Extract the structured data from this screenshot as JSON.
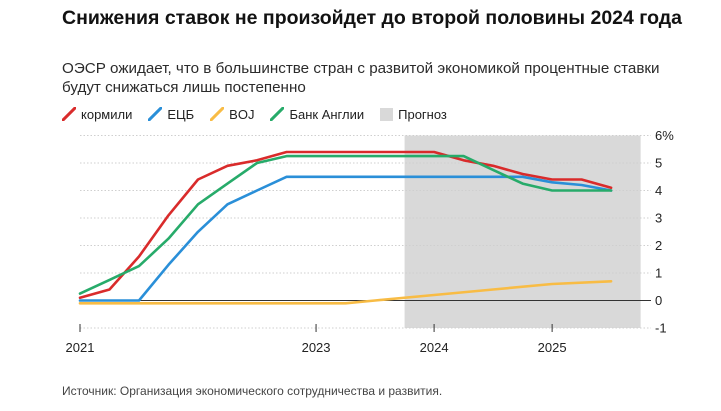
{
  "header": {
    "title": "Снижения ставок не произойдет до второй половины 2024 года",
    "subtitle": "ОЭСР ожидает, что в большинстве стран с развитой экономикой процентные ставки будут снижаться лишь постепенно"
  },
  "legend": {
    "items": [
      {
        "label": "кормили",
        "color": "#d92b2b"
      },
      {
        "label": "ЕЦБ",
        "color": "#2a8fd8"
      },
      {
        "label": "BOJ",
        "color": "#f8bc45"
      },
      {
        "label": "Банк Англии",
        "color": "#27ab6a"
      }
    ],
    "forecast_label": "Прогноз",
    "forecast_color": "#d9d9d9"
  },
  "source": "Источник: Организация экономического сотрудничества и развития.",
  "chart_data": {
    "type": "line",
    "x_ticks": [
      {
        "label": "2021",
        "x": 2021.0
      },
      {
        "label": "2023",
        "x": 2023.0
      },
      {
        "label": "2024",
        "x": 2024.0
      },
      {
        "label": "2025",
        "x": 2025.0
      }
    ],
    "y_ticks": [
      {
        "label": "6%",
        "value": 6
      },
      {
        "label": "5",
        "value": 5
      },
      {
        "label": "4",
        "value": 4
      },
      {
        "label": "3",
        "value": 3
      },
      {
        "label": "2",
        "value": 2
      },
      {
        "label": "1",
        "value": 1
      },
      {
        "label": "0",
        "value": 0
      },
      {
        "label": "-1",
        "value": -1
      }
    ],
    "xlim": [
      2021.0,
      2025.77
    ],
    "ylim": [
      -1,
      6
    ],
    "forecast_range": [
      2023.75,
      2025.75
    ],
    "series": [
      {
        "name": "кормили",
        "color": "#d92b2b",
        "points": [
          [
            2021.0,
            0.1
          ],
          [
            2021.25,
            0.4
          ],
          [
            2021.5,
            1.6
          ],
          [
            2021.75,
            3.1
          ],
          [
            2022.0,
            4.4
          ],
          [
            2022.25,
            4.9
          ],
          [
            2022.5,
            5.1
          ],
          [
            2022.75,
            5.4
          ],
          [
            2023.0,
            5.4
          ],
          [
            2023.25,
            5.4
          ],
          [
            2023.5,
            5.4
          ],
          [
            2023.75,
            5.4
          ],
          [
            2024.0,
            5.4
          ],
          [
            2024.25,
            5.1
          ],
          [
            2024.5,
            4.9
          ],
          [
            2024.75,
            4.6
          ],
          [
            2025.0,
            4.4
          ],
          [
            2025.25,
            4.4
          ],
          [
            2025.5,
            4.1
          ]
        ]
      },
      {
        "name": "ЕЦБ",
        "color": "#2a8fd8",
        "points": [
          [
            2021.0,
            0.0
          ],
          [
            2021.25,
            0.0
          ],
          [
            2021.5,
            0.0
          ],
          [
            2021.75,
            1.3
          ],
          [
            2022.0,
            2.5
          ],
          [
            2022.25,
            3.5
          ],
          [
            2022.5,
            4.0
          ],
          [
            2022.75,
            4.5
          ],
          [
            2023.0,
            4.5
          ],
          [
            2023.25,
            4.5
          ],
          [
            2023.5,
            4.5
          ],
          [
            2023.75,
            4.5
          ],
          [
            2024.0,
            4.5
          ],
          [
            2024.25,
            4.5
          ],
          [
            2024.5,
            4.5
          ],
          [
            2024.75,
            4.5
          ],
          [
            2025.0,
            4.3
          ],
          [
            2025.25,
            4.2
          ],
          [
            2025.5,
            4.0
          ]
        ]
      },
      {
        "name": "BOJ",
        "color": "#f8bc45",
        "points": [
          [
            2021.0,
            -0.1
          ],
          [
            2021.5,
            -0.1
          ],
          [
            2022.0,
            -0.1
          ],
          [
            2022.5,
            -0.1
          ],
          [
            2023.0,
            -0.1
          ],
          [
            2023.25,
            -0.1
          ],
          [
            2023.5,
            0.0
          ],
          [
            2024.0,
            0.2
          ],
          [
            2024.5,
            0.4
          ],
          [
            2025.0,
            0.6
          ],
          [
            2025.5,
            0.7
          ]
        ]
      },
      {
        "name": "Банк Англии",
        "color": "#27ab6a",
        "points": [
          [
            2021.0,
            0.25
          ],
          [
            2021.25,
            0.75
          ],
          [
            2021.5,
            1.25
          ],
          [
            2021.75,
            2.25
          ],
          [
            2022.0,
            3.5
          ],
          [
            2022.25,
            4.25
          ],
          [
            2022.5,
            5.0
          ],
          [
            2022.75,
            5.25
          ],
          [
            2023.0,
            5.25
          ],
          [
            2023.25,
            5.25
          ],
          [
            2023.5,
            5.25
          ],
          [
            2023.75,
            5.25
          ],
          [
            2024.0,
            5.25
          ],
          [
            2024.25,
            5.25
          ],
          [
            2024.5,
            4.75
          ],
          [
            2024.75,
            4.25
          ],
          [
            2025.0,
            4.0
          ],
          [
            2025.25,
            4.0
          ],
          [
            2025.5,
            4.0
          ]
        ]
      }
    ]
  }
}
